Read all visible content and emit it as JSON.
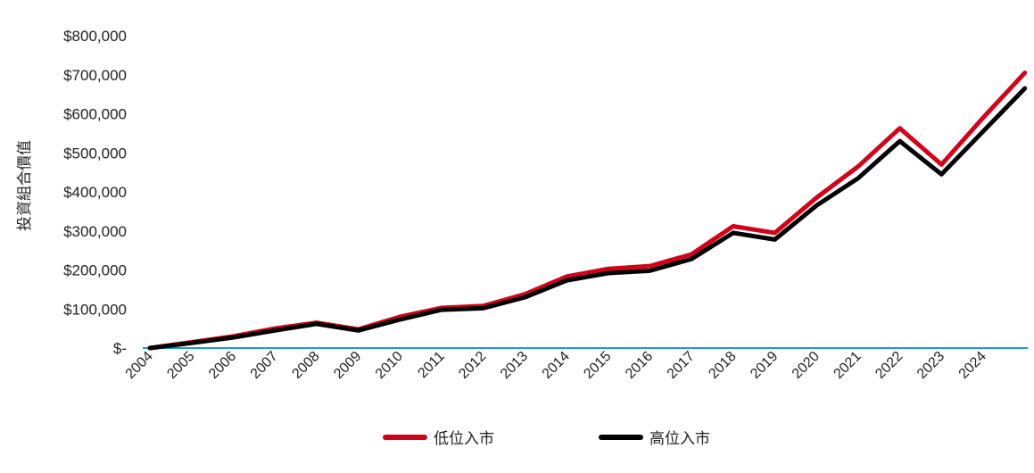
{
  "chart_data": {
    "type": "line",
    "title": "",
    "xlabel": "",
    "ylabel": "投資組合價值",
    "ylim": [
      0,
      800000
    ],
    "y_ticks": [
      0,
      100000,
      200000,
      300000,
      400000,
      500000,
      600000,
      700000,
      800000
    ],
    "y_tick_labels": [
      "$-",
      "$100,000",
      "$200,000",
      "$300,000",
      "$400,000",
      "$500,000",
      "$600,000",
      "$700,000",
      "$800,000"
    ],
    "x_tick_labels": [
      "2004",
      "2005",
      "2006",
      "2007",
      "2008",
      "2009",
      "2010",
      "2011",
      "2012",
      "2013",
      "2014",
      "2015",
      "2016",
      "2017",
      "2018",
      "2019",
      "2020",
      "2021",
      "2022",
      "2023",
      "2024"
    ],
    "x": [
      2004,
      2005,
      2006,
      2007,
      2008,
      2009,
      2010,
      2011,
      2012,
      2013,
      2014,
      2015,
      2016,
      2017,
      2018,
      2019,
      2020,
      2021,
      2022,
      2023,
      2024,
      2025
    ],
    "grid": false,
    "legend_position": "bottom",
    "series": [
      {
        "name": "低位入市",
        "color": "#d0021b",
        "values": [
          0,
          15000,
          30000,
          50000,
          65000,
          48000,
          80000,
          103000,
          108000,
          138000,
          183000,
          203000,
          210000,
          240000,
          312000,
          295000,
          385000,
          465000,
          563000,
          470000,
          590000,
          705000
        ]
      },
      {
        "name": "高位入市",
        "color": "#000000",
        "values": [
          0,
          13000,
          27000,
          45000,
          62000,
          45000,
          73000,
          98000,
          102000,
          130000,
          173000,
          192000,
          198000,
          228000,
          295000,
          278000,
          365000,
          435000,
          530000,
          445000,
          555000,
          665000
        ]
      }
    ],
    "axis_color": "#1a9bd1"
  }
}
